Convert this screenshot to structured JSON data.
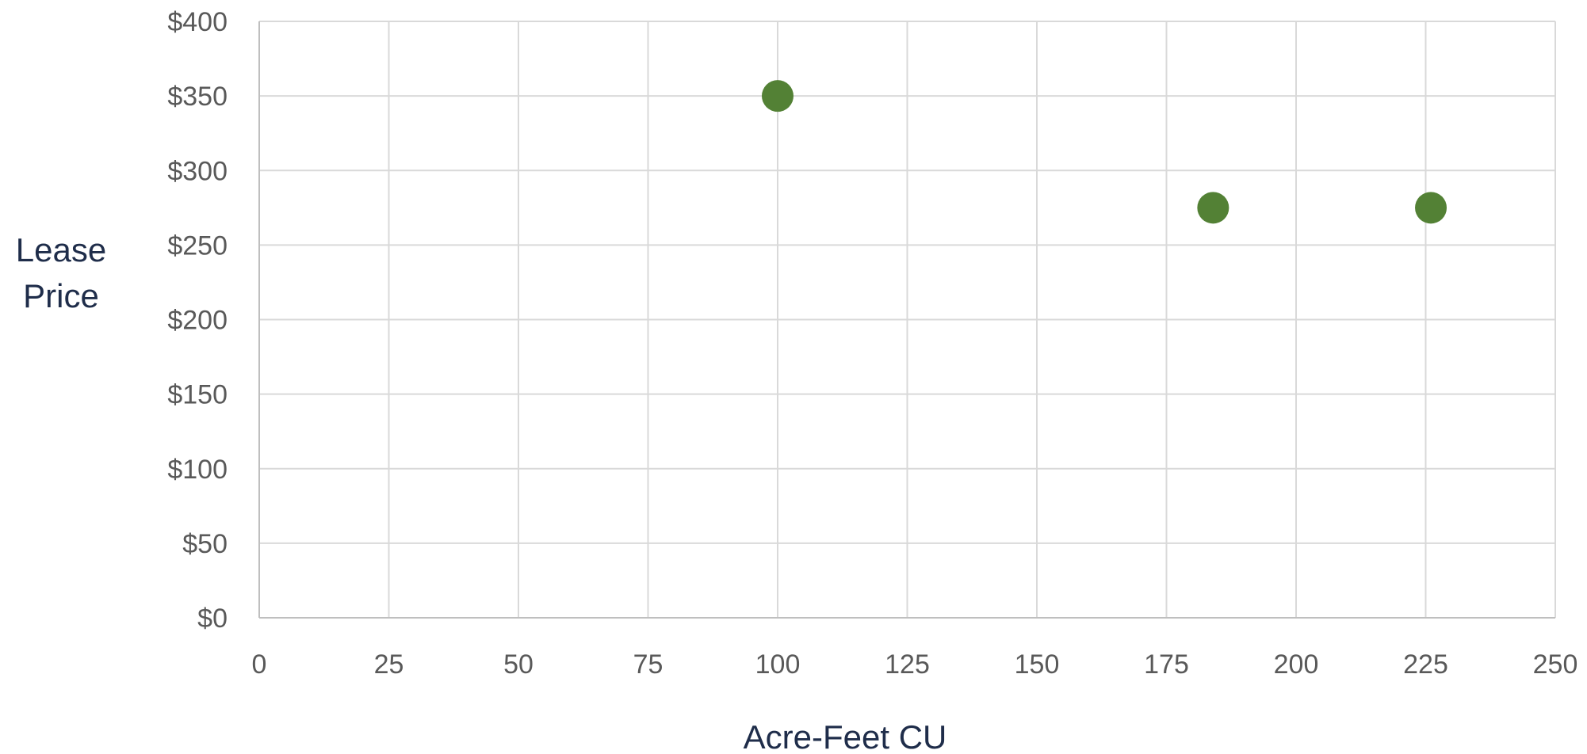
{
  "chart_data": {
    "type": "scatter",
    "title": "",
    "xlabel": "Acre-Feet CU",
    "ylabel_lines": [
      "Lease",
      "Price"
    ],
    "xlim": [
      0,
      250
    ],
    "ylim": [
      0,
      400
    ],
    "x_ticks": [
      0,
      25,
      50,
      75,
      100,
      125,
      150,
      175,
      200,
      225,
      250
    ],
    "y_ticks": [
      0,
      50,
      100,
      150,
      200,
      250,
      300,
      350,
      400
    ],
    "x_tick_labels": [
      "0",
      "25",
      "50",
      "75",
      "100",
      "125",
      "150",
      "175",
      "200",
      "225",
      "250"
    ],
    "y_tick_labels": [
      "$0",
      "$50",
      "$100",
      "$150",
      "$200",
      "$250",
      "$300",
      "$350",
      "$400"
    ],
    "grid": true,
    "legend": "none",
    "marker_color": "#538135",
    "series": [
      {
        "points": [
          {
            "x": 100,
            "y": 350
          },
          {
            "x": 184,
            "y": 275
          },
          {
            "x": 226,
            "y": 275
          }
        ]
      }
    ]
  }
}
